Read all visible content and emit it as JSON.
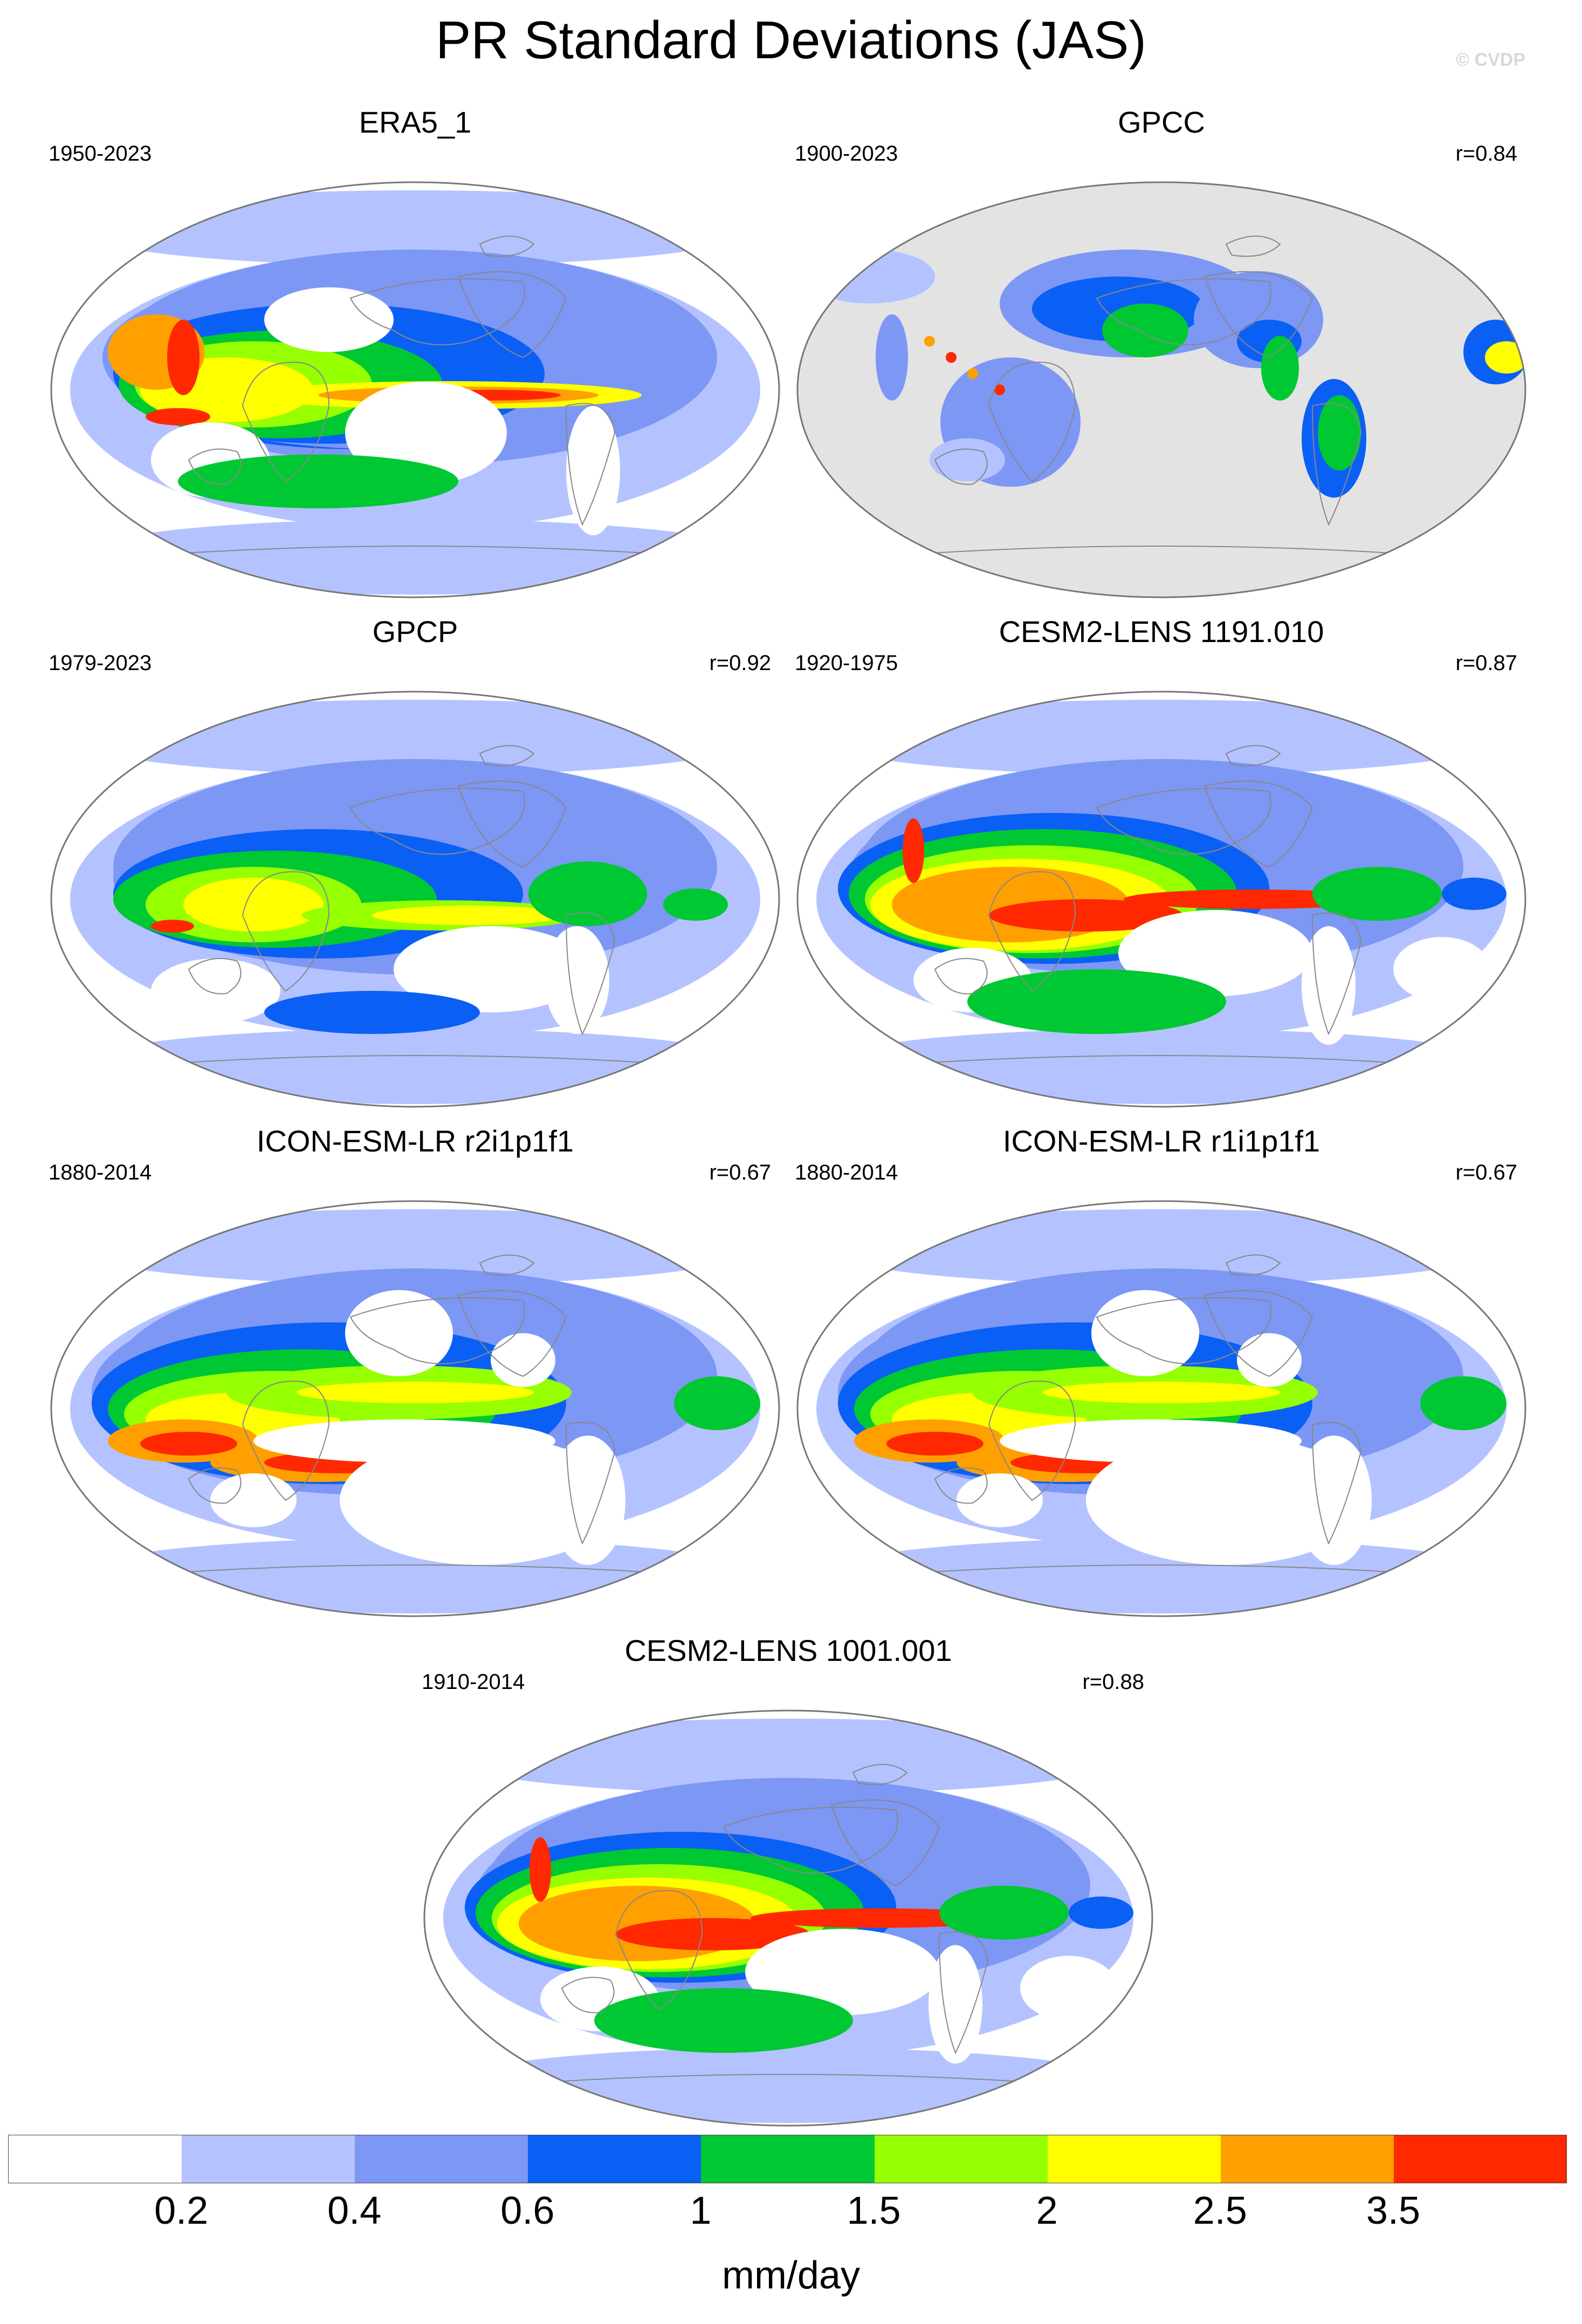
{
  "title": "PR Standard Deviations (JAS)",
  "watermark": "© CVDP",
  "panels": [
    {
      "title": "ERA5_1",
      "years": "1950-2023",
      "r": "",
      "variant": "era5"
    },
    {
      "title": "GPCC",
      "years": "1900-2023",
      "r": "r=0.84",
      "variant": "gpcc"
    },
    {
      "title": "GPCP",
      "years": "1979-2023",
      "r": "r=0.92",
      "variant": "gpcp"
    },
    {
      "title": "CESM2-LENS 1191.010",
      "years": "1920-1975",
      "r": "r=0.87",
      "variant": "cesm"
    },
    {
      "title": "ICON-ESM-LR r2i1p1f1",
      "years": "1880-2014",
      "r": "r=0.67",
      "variant": "icon"
    },
    {
      "title": "ICON-ESM-LR r1i1p1f1",
      "years": "1880-2014",
      "r": "r=0.67",
      "variant": "icon"
    },
    {
      "title": "CESM2-LENS 1001.001",
      "years": "1910-2014",
      "r": "r=0.88",
      "variant": "cesm"
    }
  ],
  "colorbar": {
    "colors": [
      "#ffffff",
      "#b4c3ff",
      "#7d97f5",
      "#0a5ff5",
      "#00c832",
      "#96ff00",
      "#ffff00",
      "#ffa000",
      "#ff2800"
    ],
    "tick_labels": [
      "0.2",
      "0.4",
      "0.6",
      "1",
      "1.5",
      "2",
      "2.5",
      "3.5"
    ],
    "units": "mm/day"
  },
  "missing_color": "#e3e3e3"
}
